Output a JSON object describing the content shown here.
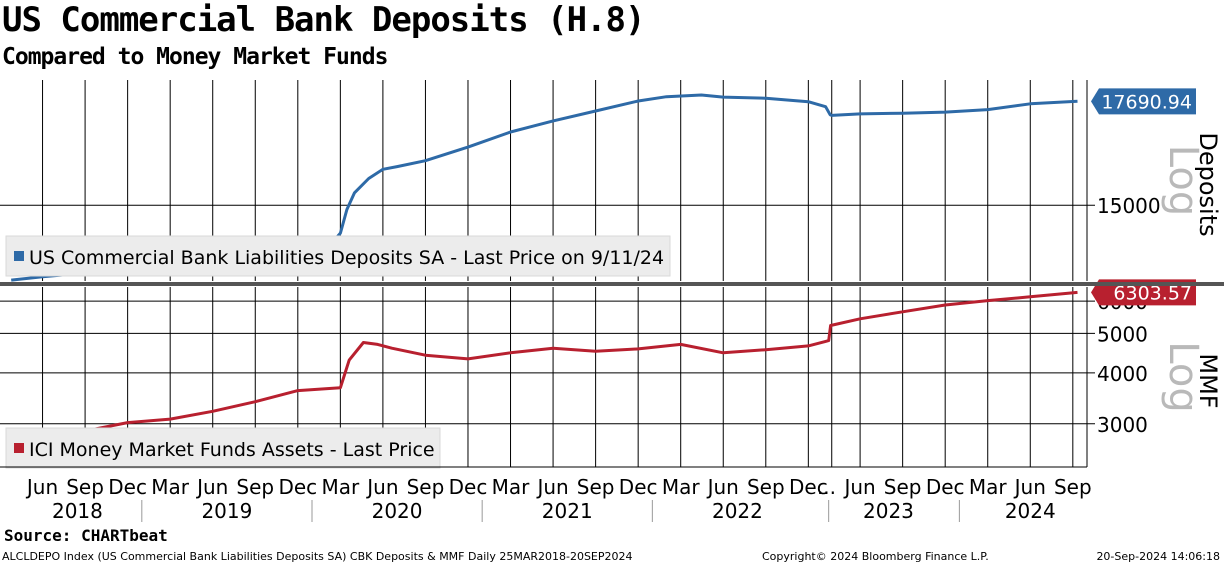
{
  "header": {
    "title": "US Commercial Bank Deposits (H.8)",
    "subtitle": "Compared to Money Market Funds"
  },
  "footer": {
    "source": "Source: CHARTbeat",
    "description": "ALCLDEPO Index (US Commercial Bank Liabilities Deposits SA) CBK Deposits & MMF  Daily 25MAR2018-20SEP2024",
    "copyright": "Copyright© 2024 Bloomberg Finance L.P.",
    "timestamp": "20-Sep-2024 14:06:18"
  },
  "colors": {
    "deposits": "#2e6aa7",
    "mmf": "#b8202f",
    "grid": "#000000",
    "log_watermark": "#b9b9b9"
  },
  "chart_data": [
    {
      "type": "line",
      "panel": "top",
      "axis_title": "Deposits",
      "scale": "log",
      "scale_label": "Log",
      "ylim": [
        13300,
        18300
      ],
      "yticks": [
        15000
      ],
      "legend": "US Commercial Bank Liabilities Deposits SA - Last Price on 9/11/24",
      "legend_position": "bottom-left",
      "last_value_label": "17690.94",
      "series": [
        {
          "x": [
            "2018-03-25",
            "2018-06-01",
            "2018-09-01",
            "2018-12-01",
            "2019-03-01",
            "2019-06-01",
            "2019-09-01",
            "2019-12-01",
            "2020-02-15",
            "2020-03-01",
            "2020-03-15",
            "2020-04-01",
            "2020-05-01",
            "2020-06-01",
            "2020-07-01",
            "2020-09-01",
            "2020-12-01",
            "2021-03-01",
            "2021-06-01",
            "2021-09-01",
            "2021-12-01",
            "2022-02-01",
            "2022-04-15",
            "2022-06-01",
            "2022-09-01",
            "2022-12-01",
            "2023-02-01",
            "2023-03-15",
            "2023-04-01",
            "2023-06-01",
            "2023-09-01",
            "2023-12-01",
            "2024-03-01",
            "2024-06-01",
            "2024-09-11"
          ],
          "y": [
            13320,
            13390,
            13470,
            13530,
            13650,
            13760,
            13860,
            14000,
            14150,
            14350,
            14900,
            15300,
            15650,
            15880,
            15950,
            16100,
            16450,
            16850,
            17150,
            17420,
            17700,
            17820,
            17870,
            17810,
            17780,
            17680,
            17540,
            17320,
            17300,
            17340,
            17360,
            17390,
            17460,
            17620,
            17690.94
          ]
        }
      ]
    },
    {
      "type": "line",
      "panel": "bottom",
      "axis_title": "MMF",
      "scale": "log",
      "scale_label": "Log",
      "ylim": [
        2350,
        6500
      ],
      "yticks": [
        3000,
        4000,
        5000,
        6000
      ],
      "legend": "ICI Money Market Funds Assets - Last Price",
      "legend_position": "bottom-left",
      "last_value_label": "6303.57",
      "series": [
        {
          "x": [
            "2018-03-25",
            "2018-06-01",
            "2018-09-01",
            "2018-12-01",
            "2019-03-01",
            "2019-06-01",
            "2019-09-01",
            "2019-12-01",
            "2020-03-01",
            "2020-03-20",
            "2020-04-20",
            "2020-05-20",
            "2020-06-20",
            "2020-09-01",
            "2020-12-01",
            "2021-03-01",
            "2021-06-01",
            "2021-09-01",
            "2021-12-01",
            "2022-03-01",
            "2022-06-01",
            "2022-09-01",
            "2022-12-01",
            "2023-02-01",
            "2023-03-01",
            "2023-03-20",
            "2023-06-01",
            "2023-09-01",
            "2023-12-01",
            "2024-03-01",
            "2024-06-01",
            "2024-09-11"
          ],
          "y": [
            2780,
            2820,
            2880,
            3020,
            3080,
            3220,
            3400,
            3620,
            3680,
            4300,
            4750,
            4700,
            4600,
            4420,
            4330,
            4480,
            4600,
            4520,
            4580,
            4700,
            4480,
            4560,
            4660,
            4780,
            4800,
            5230,
            5430,
            5650,
            5870,
            6020,
            6150,
            6303.57
          ]
        }
      ]
    }
  ],
  "x_axis": {
    "month_labels": [
      "Jun",
      "Sep",
      "Dec",
      "Mar",
      "Jun",
      "Sep",
      "Dec",
      "Mar",
      "Jun",
      "Sep",
      "Dec",
      "Mar",
      "Jun",
      "Sep",
      "Dec",
      "Mar",
      "Jun",
      "Sep",
      "Dec",
      "...",
      "Jun",
      "Sep",
      "Dec",
      "Mar",
      "Jun",
      "Sep"
    ],
    "year_labels": [
      "2018",
      "2019",
      "2020",
      "2021",
      "2022",
      "2023",
      "2024"
    ]
  }
}
